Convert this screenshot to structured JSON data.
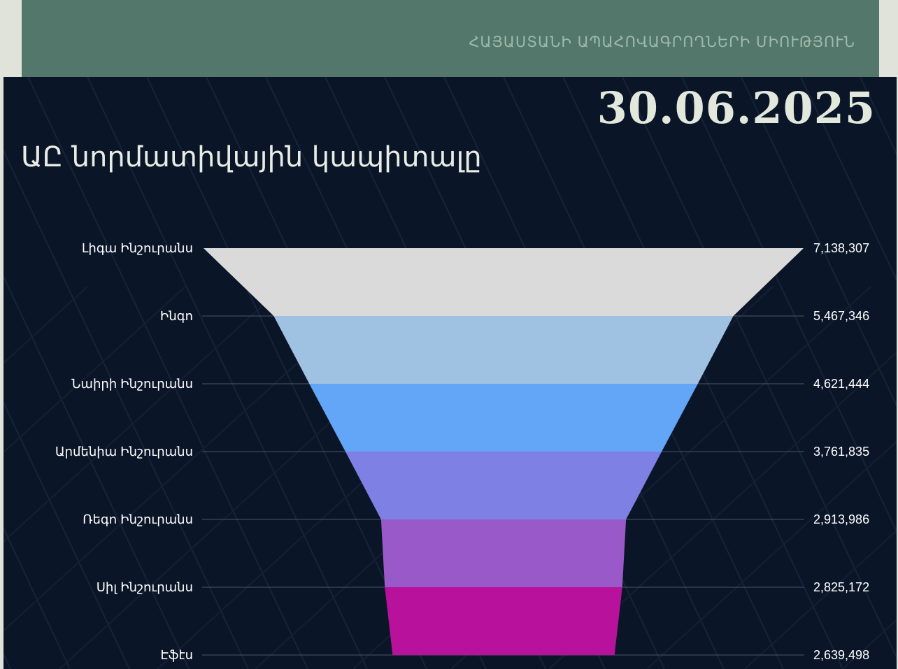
{
  "header": {
    "organization": "ՀԱՅԱՍՏԱՆԻ ԱՊԱՀՈՎԱԳՐՈՂՆԵՐԻ ՄԻՈՒԹՅՈՒՆ",
    "date": "30.06.2025",
    "title": "ԱԸ նորմատիվային կապիտալը"
  },
  "chart_data": {
    "type": "funnel",
    "title": "ԱԸ նորմատիվային կապիտալը",
    "categories": [
      "Լիգա Ինշուրանս",
      "Ինգո",
      "Նաիրի Ինշուրանս",
      "Արմենիա Ինշուրանս",
      "Ռեգո Ինշուրանս",
      "Սիլ Ինշուրանս",
      "Էֆէս"
    ],
    "values": [
      7138307,
      5467346,
      4621444,
      3761835,
      2913986,
      2825172,
      2639498
    ],
    "value_labels": [
      "7,138,307",
      "5,467,346",
      "4,621,444",
      "3,761,835",
      "2,913,986",
      "2,825,172",
      "2,639,498"
    ],
    "colors": [
      "#dadada",
      "#a0c2e2",
      "#63a6f8",
      "#7f80e4",
      "#9959c9",
      "#b8119c"
    ],
    "grid": true
  }
}
